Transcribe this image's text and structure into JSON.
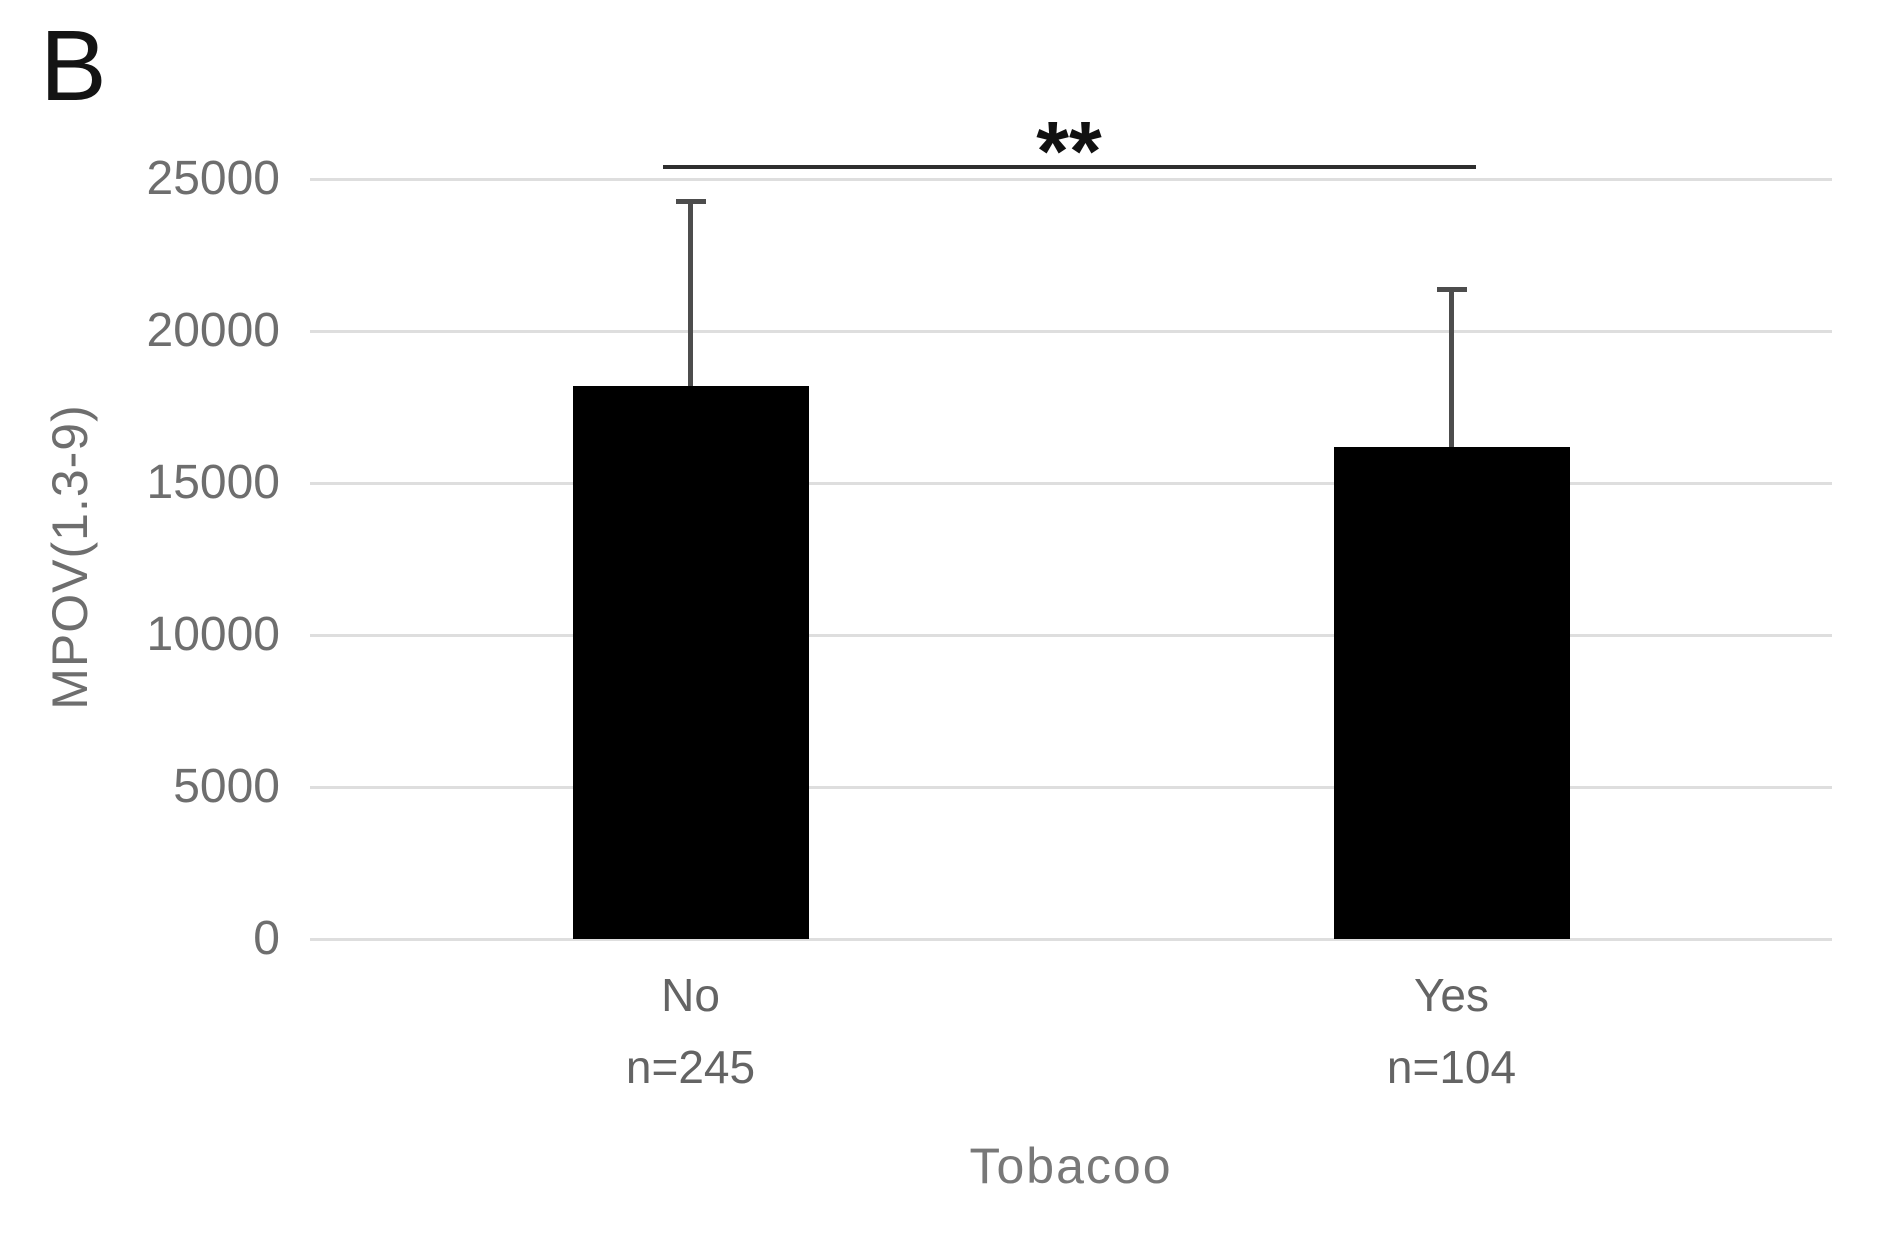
{
  "panel_label": "B",
  "chart_data": {
    "type": "bar",
    "title": "",
    "categories": [
      "No",
      "Yes"
    ],
    "n_labels": [
      "n=245",
      "n=104"
    ],
    "values": [
      18200,
      16200
    ],
    "error_upper": [
      6050,
      5150
    ],
    "xlabel": "Tobacoo",
    "ylabel": "MPOV(1.3-9)",
    "ylim": [
      0,
      25000
    ],
    "y_ticks": [
      0,
      5000,
      10000,
      15000,
      20000,
      25000
    ],
    "grid": "horizontal-light",
    "legend": "none",
    "bar_color": "#000000",
    "significance": {
      "symbol": "**",
      "between": [
        "No",
        "Yes"
      ],
      "height_value": 25400
    }
  },
  "colors": {
    "bar": "#000000",
    "gridline": "#dedede",
    "error_bar": "#4d4d4d",
    "sig_line": "#2e2e2e",
    "muted_text": "#6e6e6e"
  }
}
